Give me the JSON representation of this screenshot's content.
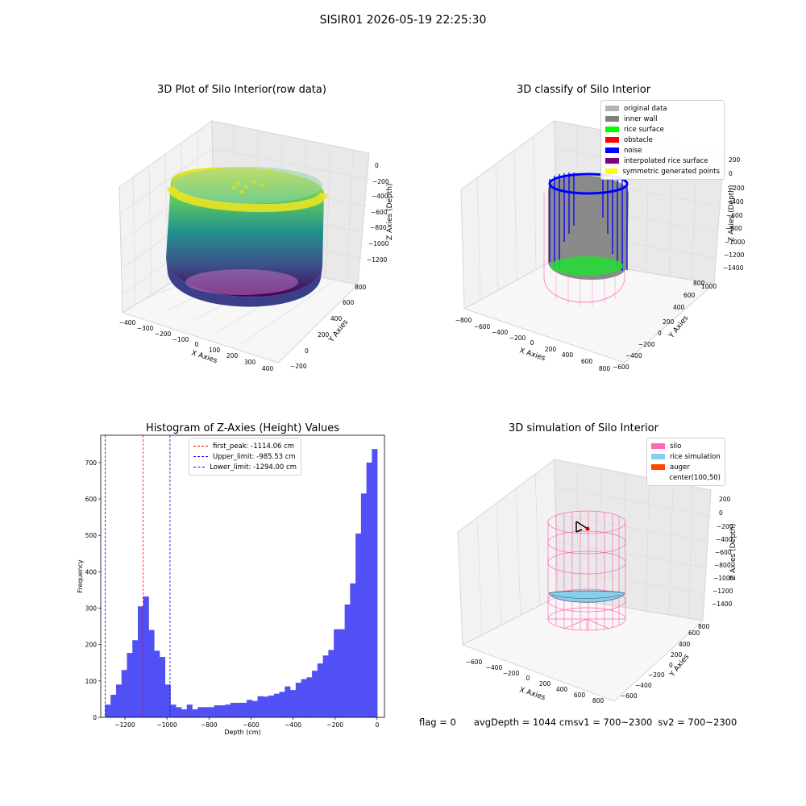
{
  "suptitle": "SISIR01 2026-05-19 22:25:30",
  "chart_data": [
    {
      "id": "raw3d",
      "type": "scatter",
      "title": "3D Plot of Silo Interior(row data)",
      "xlabel": "X Axies",
      "ylabel": "Y Axies",
      "zlabel": "Z Axies (Depth)",
      "x_ticks": [
        "−400",
        "−300",
        "−200",
        "−100",
        "0",
        "100",
        "200",
        "300",
        "400"
      ],
      "y_ticks": [
        "−200",
        "0",
        "200",
        "400",
        "600",
        "800"
      ],
      "z_ticks": [
        "0",
        "−200",
        "−400",
        "−600",
        "−800",
        "−1000",
        "−1200"
      ],
      "colormap": "viridis"
    },
    {
      "id": "classify3d",
      "type": "scatter",
      "title": "3D classify of Silo Interior",
      "xlabel": "X Axies",
      "ylabel": "Y Axies",
      "zlabel": "Z Axies (Depth)",
      "x_ticks": [
        "−800",
        "−600",
        "−400",
        "−200",
        "0",
        "200",
        "400",
        "600",
        "800"
      ],
      "y_ticks": [
        "−600",
        "−400",
        "−200",
        "0",
        "200",
        "400",
        "600",
        "800",
        "1000"
      ],
      "z_ticks": [
        "200",
        "0",
        "−200",
        "−400",
        "−600",
        "−800",
        "−1000",
        "−1200",
        "−1400"
      ],
      "legend": [
        {
          "label": "original data",
          "color": "#b3b3b3"
        },
        {
          "label": "inner wall",
          "color": "#808080"
        },
        {
          "label": "rice surface",
          "color": "#00ff00"
        },
        {
          "label": "obstacle",
          "color": "#ff0000"
        },
        {
          "label": "noise",
          "color": "#0000ff"
        },
        {
          "label": "interpolated rice surface",
          "color": "#800080"
        },
        {
          "label": "symmetric generated points",
          "color": "#ffff00"
        }
      ]
    },
    {
      "id": "hist",
      "type": "bar",
      "title": "Histogram of Z-Axies (Height) Values",
      "xlabel": "Depth (cm)",
      "ylabel": "Frequency",
      "xlim": [
        -1315,
        35
      ],
      "ylim": [
        0,
        775
      ],
      "x_ticks": [
        -1200,
        -1000,
        -800,
        -600,
        -400,
        -200,
        0
      ],
      "x_tick_labels": [
        "−1200",
        "−1000",
        "−800",
        "−600",
        "−400",
        "−200",
        "0"
      ],
      "y_ticks": [
        0,
        100,
        200,
        300,
        400,
        500,
        600,
        700
      ],
      "bin_start": -1294,
      "bin_width": 25.9,
      "bar_color": "#5050f5",
      "values": [
        35,
        62,
        90,
        130,
        177,
        212,
        305,
        332,
        240,
        183,
        166,
        90,
        35,
        28,
        22,
        35,
        22,
        28,
        28,
        28,
        33,
        33,
        35,
        40,
        40,
        40,
        48,
        45,
        58,
        57,
        60,
        65,
        70,
        85,
        75,
        95,
        105,
        110,
        128,
        148,
        170,
        185,
        242,
        242,
        310,
        368,
        505,
        615,
        700,
        737
      ],
      "vlines": [
        {
          "label": "first_peak: -1114.06 cm",
          "x": -1114.06,
          "color": "#ff0000"
        },
        {
          "label": "Upper_limit: -985.53 cm",
          "x": -985.53,
          "color": "#0000ff"
        },
        {
          "label": "Lower_limit: -1294.00 cm",
          "x": -1294.0,
          "color": "#0000ff"
        }
      ]
    },
    {
      "id": "sim3d",
      "type": "scatter",
      "title": "3D simulation of Silo Interior",
      "xlabel": "X Axies",
      "ylabel": "Y Axies",
      "zlabel": "Z Axies (Depth)",
      "x_ticks": [
        "−600",
        "−400",
        "−200",
        "0",
        "200",
        "400",
        "600",
        "800"
      ],
      "y_ticks": [
        "−600",
        "−400",
        "−200",
        "0",
        "200",
        "400",
        "600",
        "800"
      ],
      "z_ticks": [
        "200",
        "0",
        "−200",
        "−400",
        "−600",
        "−800",
        "−1000",
        "−1200",
        "−1400"
      ],
      "legend": [
        {
          "label": "silo",
          "color": "#ff69b4"
        },
        {
          "label": "rice simulation",
          "color": "#87ceeb"
        },
        {
          "label": "auger",
          "color": "#ff4500"
        },
        {
          "label": "center(100,50)",
          "color": ""
        }
      ]
    }
  ],
  "status": {
    "flag": "flag = 0",
    "avg_depth": "avgDepth = 1044 cm",
    "sv1": "sv1 = 700~2300",
    "sv2": "sv2 = 700~2300"
  }
}
